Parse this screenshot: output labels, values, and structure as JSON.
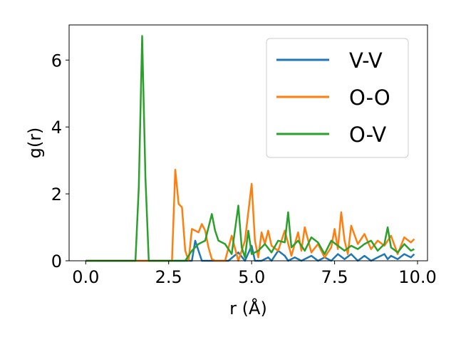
{
  "chart_data": {
    "type": "line",
    "title": "",
    "xlabel": "r (Å)",
    "ylabel": "g(r)",
    "xlim": [
      -0.5,
      10.3
    ],
    "ylim": [
      0,
      7.05
    ],
    "xticks": [
      0.0,
      2.5,
      5.0,
      7.5,
      10.0
    ],
    "xtick_labels": [
      "0.0",
      "2.5",
      "5.0",
      "7.5",
      "10.0"
    ],
    "yticks": [
      0,
      2,
      4,
      6
    ],
    "ytick_labels": [
      "0",
      "2",
      "4",
      "6"
    ],
    "grid": false,
    "legend_position": "top-right",
    "series": [
      {
        "name": "V-V",
        "color": "#1f77b4",
        "x": [
          0.0,
          1.0,
          2.0,
          3.0,
          3.2,
          3.3,
          3.4,
          3.5,
          3.7,
          4.0,
          4.3,
          4.6,
          4.8,
          5.0,
          5.1,
          5.3,
          5.5,
          5.6,
          5.8,
          6.0,
          6.1,
          6.3,
          6.5,
          6.8,
          7.0,
          7.2,
          7.4,
          7.6,
          7.8,
          8.0,
          8.2,
          8.4,
          8.6,
          8.8,
          9.0,
          9.1,
          9.2,
          9.4,
          9.6,
          9.8,
          9.9
        ],
        "y": [
          0,
          0,
          0,
          0,
          0,
          0.6,
          0.3,
          0,
          0,
          0,
          0,
          0.25,
          0.0,
          0.45,
          0,
          0,
          0.1,
          0,
          0.3,
          0.15,
          0,
          0.1,
          0,
          0.15,
          0,
          0.1,
          0,
          0.2,
          0.05,
          0.2,
          0,
          0.15,
          0,
          0.1,
          0.2,
          0.05,
          0.15,
          0.05,
          0.2,
          0.1,
          0.2
        ]
      },
      {
        "name": "O-O",
        "color": "#ff7f0e",
        "x": [
          0.0,
          1.0,
          2.0,
          2.6,
          2.7,
          2.8,
          2.9,
          3.0,
          3.1,
          3.2,
          3.3,
          3.4,
          3.5,
          3.6,
          3.7,
          3.8,
          3.9,
          4.0,
          4.2,
          4.4,
          4.6,
          4.8,
          5.0,
          5.1,
          5.2,
          5.3,
          5.4,
          5.5,
          5.6,
          5.8,
          6.0,
          6.2,
          6.4,
          6.5,
          6.6,
          6.8,
          7.0,
          7.2,
          7.4,
          7.5,
          7.6,
          7.7,
          7.8,
          7.9,
          8.0,
          8.2,
          8.4,
          8.6,
          8.8,
          9.0,
          9.2,
          9.4,
          9.6,
          9.8,
          9.9
        ],
        "y": [
          0,
          0,
          0,
          0,
          2.72,
          1.7,
          1.6,
          0.3,
          0,
          0.95,
          0.9,
          0.85,
          1.1,
          0.9,
          0.4,
          0.05,
          0,
          0,
          0,
          0.75,
          0,
          0.6,
          2.3,
          0.6,
          0.1,
          0.85,
          0.5,
          0.9,
          0.45,
          0.3,
          0.9,
          0.15,
          0.85,
          0.3,
          1.0,
          0.25,
          0.5,
          0.1,
          0.4,
          0.95,
          0.35,
          1.45,
          0.6,
          0.2,
          1.05,
          0.5,
          0.8,
          0.35,
          0.6,
          0.45,
          0.75,
          0.2,
          0.7,
          0.55,
          0.65
        ]
      },
      {
        "name": "O-V",
        "color": "#2ca02c",
        "x": [
          0.0,
          1.0,
          1.5,
          1.6,
          1.7,
          1.8,
          1.9,
          2.0,
          3.0,
          3.2,
          3.4,
          3.6,
          3.8,
          3.9,
          4.0,
          4.2,
          4.4,
          4.6,
          4.7,
          4.8,
          4.9,
          5.0,
          5.2,
          5.4,
          5.6,
          5.8,
          6.0,
          6.1,
          6.2,
          6.4,
          6.6,
          6.8,
          7.0,
          7.2,
          7.4,
          7.6,
          7.8,
          8.0,
          8.2,
          8.4,
          8.6,
          8.8,
          9.0,
          9.1,
          9.2,
          9.4,
          9.6,
          9.8,
          9.9
        ],
        "y": [
          0,
          0,
          0,
          2.2,
          6.72,
          2.5,
          0,
          0,
          0,
          0.3,
          0.5,
          0.6,
          1.4,
          0.9,
          0.6,
          0.5,
          0.2,
          1.65,
          0.4,
          0.1,
          0.9,
          0.2,
          0.3,
          0.5,
          0.25,
          0.6,
          0.55,
          1.45,
          0.4,
          0.6,
          0.3,
          0.7,
          0.55,
          0.2,
          0.6,
          0.45,
          0.3,
          0.45,
          0.35,
          0.5,
          0.6,
          0.3,
          0.5,
          1.0,
          0.4,
          0.25,
          0.5,
          0.3,
          0.35
        ]
      }
    ]
  }
}
